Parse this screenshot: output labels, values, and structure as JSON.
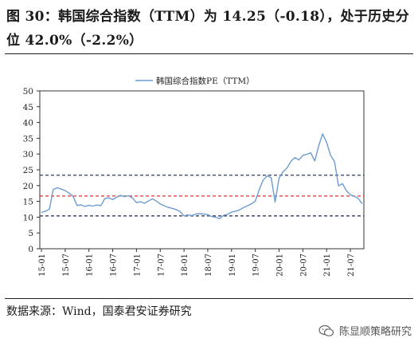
{
  "header": {
    "title": "图 30：韩国综合指数（TTM）为 14.25（-0.18），处于历史分位 42.0%（-2.2%）"
  },
  "footer": {
    "source": "数据来源：Wind，国泰君安证券研究",
    "watermark": "陈显顺策略研究",
    "watermark_icon": "wechat-icon"
  },
  "chart_data": {
    "type": "line",
    "legend": {
      "label": "韩国综合指数PE（TTM）",
      "placement": "top-center"
    },
    "ylim": [
      0,
      50
    ],
    "yticks": [
      0,
      5,
      10,
      15,
      20,
      25,
      30,
      35,
      40,
      45,
      50
    ],
    "xticks": [
      "15-01",
      "15-07",
      "16-01",
      "16-07",
      "17-01",
      "17-07",
      "18-01",
      "18-07",
      "19-01",
      "19-07",
      "20-01",
      "20-07",
      "21-01",
      "21-07"
    ],
    "x_range": [
      0,
      81
    ],
    "reference_lines": [
      {
        "value": 23.3,
        "color": "#2e3b66",
        "style": "dashed"
      },
      {
        "value": 16.7,
        "color": "#e03030",
        "style": "dashed"
      },
      {
        "value": 10.4,
        "color": "#2e3b66",
        "style": "dashed"
      }
    ],
    "series": [
      {
        "color": "#6e9bd0",
        "points": [
          [
            0,
            11.5
          ],
          [
            1,
            11.9
          ],
          [
            2,
            12.5
          ],
          [
            3,
            18.8
          ],
          [
            4,
            19.3
          ],
          [
            5,
            18.9
          ],
          [
            6,
            18.4
          ],
          [
            7,
            17.6
          ],
          [
            8,
            16.6
          ],
          [
            9,
            13.7
          ],
          [
            10,
            13.9
          ],
          [
            11,
            13.4
          ],
          [
            12,
            13.8
          ],
          [
            13,
            13.5
          ],
          [
            14,
            13.9
          ],
          [
            15,
            13.6
          ],
          [
            16,
            15.9
          ],
          [
            17,
            16.1
          ],
          [
            18,
            15.6
          ],
          [
            19,
            16.3
          ],
          [
            20,
            16.9
          ],
          [
            21,
            16.5
          ],
          [
            22,
            16.8
          ],
          [
            23,
            16.1
          ],
          [
            24,
            14.6
          ],
          [
            25,
            14.9
          ],
          [
            26,
            14.4
          ],
          [
            27,
            15.1
          ],
          [
            28,
            15.8
          ],
          [
            29,
            15.1
          ],
          [
            30,
            14.2
          ],
          [
            31,
            13.6
          ],
          [
            32,
            13.1
          ],
          [
            33,
            12.8
          ],
          [
            34,
            12.4
          ],
          [
            35,
            11.8
          ],
          [
            36,
            10.4
          ],
          [
            37,
            10.7
          ],
          [
            38,
            10.5
          ],
          [
            39,
            11.0
          ],
          [
            40,
            11.1
          ],
          [
            41,
            11.0
          ],
          [
            42,
            10.8
          ],
          [
            43,
            10.2
          ],
          [
            44,
            10.0
          ],
          [
            45,
            9.5
          ],
          [
            46,
            10.6
          ],
          [
            47,
            10.9
          ],
          [
            48,
            11.6
          ],
          [
            49,
            11.9
          ],
          [
            50,
            12.3
          ],
          [
            51,
            13.0
          ],
          [
            52,
            13.6
          ],
          [
            53,
            14.2
          ],
          [
            54,
            15.1
          ],
          [
            55,
            18.7
          ],
          [
            56,
            21.8
          ],
          [
            57,
            23.1
          ],
          [
            58,
            22.5
          ],
          [
            59,
            14.8
          ],
          [
            60,
            22.4
          ],
          [
            61,
            24.4
          ],
          [
            62,
            25.6
          ],
          [
            63,
            27.7
          ],
          [
            64,
            28.9
          ],
          [
            65,
            28.1
          ],
          [
            66,
            29.6
          ],
          [
            67,
            29.9
          ],
          [
            68,
            30.4
          ],
          [
            69,
            27.8
          ],
          [
            70,
            32.6
          ],
          [
            71,
            36.4
          ],
          [
            72,
            33.7
          ],
          [
            73,
            29.6
          ],
          [
            74,
            27.6
          ],
          [
            75,
            19.9
          ],
          [
            76,
            20.6
          ],
          [
            77,
            18.4
          ],
          [
            78,
            17.1
          ],
          [
            79,
            16.6
          ],
          [
            80,
            15.9
          ],
          [
            81,
            14.25
          ]
        ]
      }
    ]
  }
}
